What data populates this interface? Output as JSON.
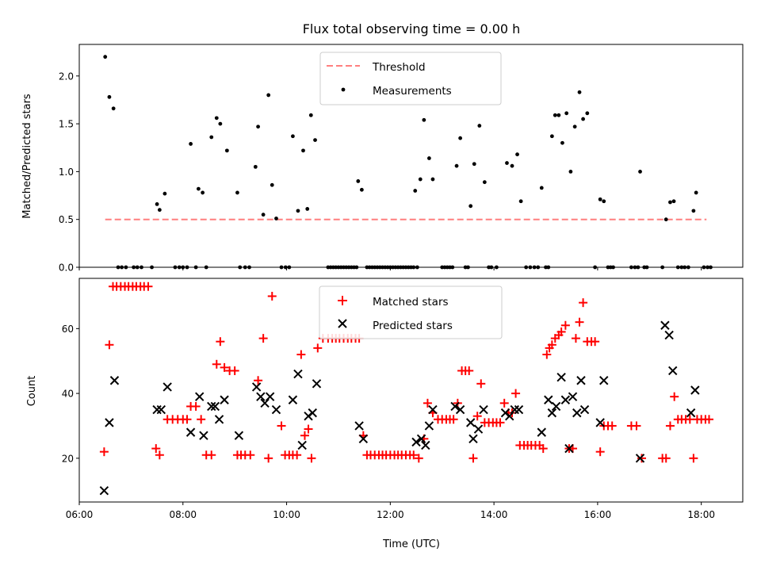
{
  "chart_data": [
    {
      "type": "scatter",
      "title": "Flux total observing time = 0.00 h",
      "ylabel": "Matched/Predicted stars",
      "xlabel": "",
      "xlim": [
        6.0,
        18.8
      ],
      "ylim": [
        0,
        2.33
      ],
      "yticks": [
        0.0,
        0.5,
        1.0,
        1.5,
        2.0
      ],
      "yticklabels": [
        "0.0",
        "0.5",
        "1.0",
        "1.5",
        "2.0"
      ],
      "xticks": [
        6,
        8,
        10,
        12,
        14,
        16,
        18
      ],
      "legend_position": "upper center",
      "colors": {
        "threshold": "#ff7f7f",
        "measurements": "#000000"
      },
      "series": [
        {
          "name": "Threshold",
          "kind": "dashed-line",
          "x": [
            6.5,
            18.1
          ],
          "y": [
            0.5,
            0.5
          ]
        },
        {
          "name": "Measurements",
          "kind": "points",
          "x": [
            6.5,
            6.58,
            6.66,
            7.5,
            7.55,
            7.65,
            8.15,
            8.3,
            8.38,
            8.55,
            8.65,
            8.72,
            8.85,
            9.05,
            9.4,
            9.45,
            9.55,
            9.65,
            9.72,
            9.8,
            10.12,
            10.22,
            10.32,
            10.4,
            10.47,
            10.55,
            11.38,
            11.45,
            12.48,
            12.58,
            12.65,
            12.75,
            12.82,
            13.28,
            13.35,
            13.55,
            13.62,
            13.72,
            13.82,
            14.25,
            14.35,
            14.45,
            14.52,
            14.92,
            15.12,
            15.18,
            15.25,
            15.32,
            15.4,
            15.48,
            15.56,
            15.65,
            15.72,
            15.8,
            16.05,
            16.12,
            16.82,
            17.32,
            17.4,
            17.47,
            17.85,
            17.9
          ],
          "y": [
            2.2,
            1.78,
            1.66,
            0.66,
            0.6,
            0.77,
            1.29,
            0.82,
            0.78,
            1.36,
            1.56,
            1.5,
            1.22,
            0.78,
            1.05,
            1.47,
            0.55,
            1.8,
            0.86,
            0.51,
            1.37,
            0.59,
            1.22,
            0.61,
            1.59,
            1.33,
            0.9,
            0.81,
            0.8,
            0.92,
            1.54,
            1.14,
            0.92,
            1.06,
            1.35,
            0.64,
            1.08,
            1.48,
            0.89,
            1.09,
            1.06,
            1.18,
            0.69,
            0.83,
            1.37,
            1.59,
            1.59,
            1.3,
            1.61,
            1.0,
            1.47,
            1.83,
            1.55,
            1.61,
            0.71,
            0.69,
            1.0,
            0.5,
            0.68,
            0.69,
            0.59,
            0.78
          ]
        },
        {
          "name": "",
          "kind": "points-zero",
          "x": [
            6.75,
            6.82,
            6.9,
            7.05,
            7.12,
            7.2,
            7.4,
            7.85,
            7.93,
            8.0,
            8.08,
            8.25,
            8.45,
            9.1,
            9.2,
            9.28,
            9.9,
            9.98,
            10.05,
            10.8,
            10.85,
            10.9,
            10.95,
            11.0,
            11.05,
            11.1,
            11.15,
            11.2,
            11.25,
            11.3,
            11.35,
            11.55,
            11.6,
            11.65,
            11.7,
            11.75,
            11.8,
            11.85,
            11.9,
            11.95,
            12.0,
            12.05,
            12.1,
            12.15,
            12.2,
            12.25,
            12.3,
            12.35,
            12.4,
            12.45,
            12.52,
            13.0,
            13.05,
            13.1,
            13.15,
            13.2,
            13.45,
            13.5,
            13.9,
            13.95,
            14.05,
            14.62,
            14.7,
            14.78,
            14.85,
            15.0,
            15.05,
            15.95,
            16.2,
            16.25,
            16.3,
            16.65,
            16.72,
            16.78,
            16.9,
            16.95,
            17.25,
            17.55,
            17.62,
            17.68,
            17.75,
            18.05,
            18.12,
            18.18
          ],
          "y": [
            0,
            0,
            0,
            0,
            0,
            0,
            0,
            0,
            0,
            0,
            0,
            0,
            0,
            0,
            0,
            0,
            0,
            0,
            0,
            0,
            0,
            0,
            0,
            0,
            0,
            0,
            0,
            0,
            0,
            0,
            0,
            0,
            0,
            0,
            0,
            0,
            0,
            0,
            0,
            0,
            0,
            0,
            0,
            0,
            0,
            0,
            0,
            0,
            0,
            0,
            0,
            0,
            0,
            0,
            0,
            0,
            0,
            0,
            0,
            0,
            0,
            0,
            0,
            0,
            0,
            0,
            0,
            0,
            0,
            0,
            0,
            0,
            0,
            0,
            0,
            0,
            0,
            0,
            0,
            0,
            0,
            0,
            0,
            0
          ]
        }
      ]
    },
    {
      "type": "scatter",
      "title": "",
      "ylabel": "Count",
      "xlabel": "Time (UTC)",
      "xlim": [
        6.0,
        18.8
      ],
      "ylim": [
        6.5,
        75.5
      ],
      "yticks": [
        20,
        40,
        60
      ],
      "yticklabels": [
        "20",
        "40",
        "60"
      ],
      "xticks": [
        6,
        8,
        10,
        12,
        14,
        16,
        18
      ],
      "xticklabels": [
        "06:00",
        "08:00",
        "10:00",
        "12:00",
        "14:00",
        "16:00",
        "18:00"
      ],
      "legend_position": "upper center",
      "colors": {
        "matched": "#ff0000",
        "predicted": "#000000"
      },
      "series": [
        {
          "name": "Matched stars",
          "marker": "plus",
          "x": [
            6.48,
            6.58,
            6.65,
            6.72,
            6.8,
            6.88,
            6.95,
            7.03,
            7.1,
            7.18,
            7.25,
            7.33,
            7.48,
            7.55,
            7.7,
            7.8,
            7.9,
            8.0,
            8.08,
            8.15,
            8.25,
            8.35,
            8.45,
            8.55,
            8.65,
            8.72,
            8.8,
            8.9,
            9.0,
            9.05,
            9.12,
            9.2,
            9.3,
            9.45,
            9.55,
            9.65,
            9.72,
            9.9,
            9.97,
            10.05,
            10.12,
            10.2,
            10.28,
            10.35,
            10.42,
            10.48,
            10.6,
            10.7,
            10.8,
            10.88,
            10.95,
            11.02,
            11.1,
            11.18,
            11.25,
            11.33,
            11.4,
            11.48,
            11.55,
            11.62,
            11.7,
            11.78,
            11.85,
            11.92,
            12.0,
            12.08,
            12.15,
            12.22,
            12.3,
            12.38,
            12.45,
            12.55,
            12.65,
            12.72,
            12.82,
            12.92,
            13.0,
            13.08,
            13.15,
            13.22,
            13.3,
            13.38,
            13.45,
            13.52,
            13.6,
            13.68,
            13.75,
            13.82,
            13.9,
            13.98,
            14.05,
            14.12,
            14.2,
            14.28,
            14.35,
            14.42,
            14.5,
            14.58,
            14.65,
            14.72,
            14.8,
            14.88,
            14.95,
            15.02,
            15.07,
            15.12,
            15.18,
            15.25,
            15.3,
            15.38,
            15.45,
            15.52,
            15.58,
            15.65,
            15.72,
            15.8,
            15.88,
            15.95,
            16.05,
            16.12,
            16.2,
            16.28,
            16.65,
            16.75,
            16.85,
            17.25,
            17.32,
            17.4,
            17.48,
            17.55,
            17.62,
            17.7,
            17.78,
            17.85,
            17.92,
            18.0,
            18.08,
            18.15
          ],
          "y": [
            22,
            55,
            73,
            73,
            73,
            73,
            73,
            73,
            73,
            73,
            73,
            73,
            23,
            21,
            32,
            32,
            32,
            32,
            32,
            36,
            36,
            32,
            21,
            21,
            49,
            56,
            48,
            47,
            47,
            21,
            21,
            21,
            21,
            44,
            57,
            20,
            70,
            30,
            21,
            21,
            21,
            21,
            52,
            27,
            29,
            20,
            54,
            57,
            57,
            57,
            57,
            57,
            57,
            57,
            57,
            57,
            57,
            27,
            21,
            21,
            21,
            21,
            21,
            21,
            21,
            21,
            21,
            21,
            21,
            21,
            21,
            20,
            26,
            37,
            34,
            32,
            32,
            32,
            32,
            32,
            37,
            47,
            47,
            47,
            20,
            33,
            43,
            31,
            31,
            31,
            31,
            31,
            37,
            34,
            34,
            40,
            24,
            24,
            24,
            24,
            24,
            24,
            23,
            52,
            54,
            55,
            57,
            58,
            59,
            61,
            23,
            23,
            57,
            62,
            68,
            56,
            56,
            56,
            22,
            30,
            30,
            30,
            30,
            30,
            20,
            20,
            20,
            30,
            39,
            32,
            32,
            32,
            32,
            20,
            32,
            32,
            32,
            32
          ]
        },
        {
          "name": "Predicted stars",
          "marker": "x",
          "x": [
            6.48,
            6.58,
            6.68,
            7.5,
            7.58,
            7.7,
            8.15,
            8.32,
            8.4,
            8.55,
            8.62,
            8.7,
            8.8,
            9.08,
            9.42,
            9.5,
            9.58,
            9.68,
            9.8,
            10.12,
            10.22,
            10.3,
            10.42,
            10.5,
            10.58,
            11.4,
            11.48,
            12.5,
            12.6,
            12.68,
            12.75,
            12.82,
            13.25,
            13.35,
            13.55,
            13.6,
            13.7,
            13.8,
            14.22,
            14.3,
            14.4,
            14.48,
            14.92,
            15.05,
            15.12,
            15.2,
            15.3,
            15.38,
            15.45,
            15.52,
            15.6,
            15.68,
            15.75,
            16.05,
            16.12,
            16.82,
            17.3,
            17.38,
            17.45,
            17.8,
            17.88
          ],
          "y": [
            10,
            31,
            44,
            35,
            35,
            42,
            28,
            39,
            27,
            36,
            36,
            32,
            38,
            27,
            42,
            39,
            37,
            39,
            35,
            38,
            46,
            24,
            33,
            34,
            43,
            30,
            26,
            25,
            26,
            24,
            30,
            35,
            36,
            35,
            31,
            26,
            29,
            35,
            34,
            33,
            35,
            35,
            28,
            38,
            34,
            36,
            45,
            38,
            23,
            39,
            34,
            44,
            35,
            31,
            44,
            20,
            61,
            58,
            47,
            34,
            41
          ]
        }
      ]
    }
  ]
}
